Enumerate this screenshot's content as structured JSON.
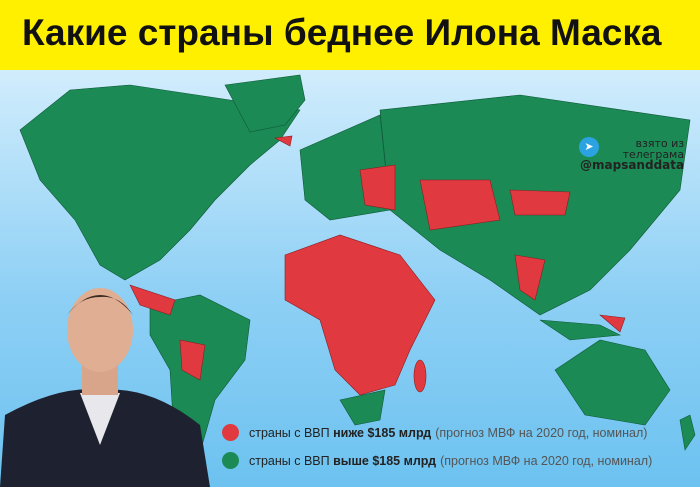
{
  "title": "Какие страны беднее Илона Маска",
  "colors": {
    "below": "#e0393f",
    "above": "#1b8a55",
    "header": "#fff000"
  },
  "legend": [
    {
      "pre": "страны с ВВП ",
      "bold": "ниже",
      "post": " $185 млрд",
      "note": "(прогноз МВФ на 2020 год, номинал)",
      "color": "#e0393f"
    },
    {
      "pre": "страны с ВВП ",
      "bold": "выше",
      "post": " $185 млрд",
      "note": "(прогноз МВФ на 2020 год, номинал)",
      "color": "#1b8a55"
    }
  ],
  "credit": {
    "line1": "взято из",
    "line2": "телеграма",
    "handle": "@mapsanddata",
    "icon": "telegram-icon"
  }
}
